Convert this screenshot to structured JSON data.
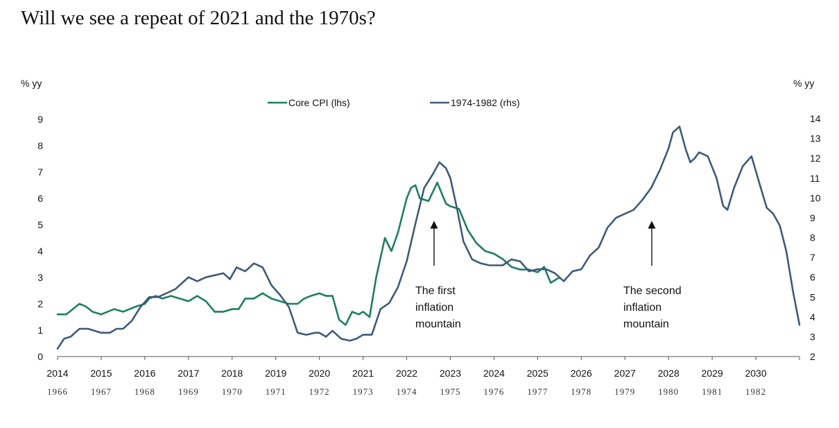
{
  "header": {
    "title": "Will we see a repeat of 2021 and the 1970s?"
  },
  "chart_data": {
    "type": "line",
    "title": "Will we see a repeat of 2021 and the 1970s?",
    "left_axis": {
      "label": "% yy",
      "ylim": [
        0,
        9
      ],
      "ticks": [
        "0",
        "1",
        "2",
        "3",
        "4",
        "5",
        "6",
        "7",
        "8",
        "9"
      ]
    },
    "right_axis": {
      "label": "% yy",
      "ylim": [
        2,
        14
      ],
      "ticks": [
        "2",
        "3",
        "4",
        "5",
        "6",
        "7",
        "8",
        "9",
        "10",
        "11",
        "12",
        "13",
        "14"
      ]
    },
    "x_axis": {
      "range": [
        2014,
        2031
      ],
      "primary_ticks": [
        "2014",
        "2015",
        "2016",
        "2017",
        "2018",
        "2019",
        "2020",
        "2021",
        "2022",
        "2023",
        "2024",
        "2025",
        "2026",
        "2027",
        "2028",
        "2029",
        "2030"
      ],
      "secondary_ticks": [
        "1966",
        "1967",
        "1968",
        "1969",
        "1970",
        "1971",
        "1972",
        "1973",
        "1974",
        "1975",
        "1976",
        "1977",
        "1978",
        "1979",
        "1980",
        "1981",
        "1982"
      ]
    },
    "legend": {
      "placement": "top-center"
    },
    "grid": false,
    "series": [
      {
        "name": "Core CPI (lhs)",
        "axis": "left",
        "color": "#1b7f5f",
        "x": [
          2014.0,
          2014.2,
          2014.35,
          2014.5,
          2014.65,
          2014.8,
          2015.0,
          2015.3,
          2015.5,
          2015.8,
          2016.0,
          2016.1,
          2016.25,
          2016.4,
          2016.6,
          2016.8,
          2017.0,
          2017.2,
          2017.4,
          2017.6,
          2017.8,
          2018.0,
          2018.15,
          2018.3,
          2018.5,
          2018.7,
          2018.9,
          2019.1,
          2019.3,
          2019.5,
          2019.65,
          2019.8,
          2020.0,
          2020.15,
          2020.3,
          2020.45,
          2020.6,
          2020.75,
          2020.9,
          2021.0,
          2021.15,
          2021.3,
          2021.5,
          2021.65,
          2021.8,
          2022.0,
          2022.1,
          2022.2,
          2022.3,
          2022.5,
          2022.7,
          2022.9,
          2023.0,
          2023.2,
          2023.4,
          2023.6,
          2023.8,
          2024.0,
          2024.2,
          2024.4,
          2024.6,
          2024.8,
          2025.0,
          2025.15,
          2025.3,
          2025.5
        ],
        "values": [
          1.6,
          1.6,
          1.8,
          2.0,
          1.9,
          1.7,
          1.6,
          1.8,
          1.7,
          1.9,
          2.0,
          2.2,
          2.3,
          2.2,
          2.3,
          2.2,
          2.1,
          2.3,
          2.1,
          1.7,
          1.7,
          1.8,
          1.8,
          2.2,
          2.2,
          2.4,
          2.2,
          2.1,
          2.0,
          2.0,
          2.2,
          2.3,
          2.4,
          2.3,
          2.3,
          1.4,
          1.2,
          1.7,
          1.6,
          1.7,
          1.5,
          3.0,
          4.5,
          4.0,
          4.7,
          6.0,
          6.4,
          6.5,
          6.0,
          5.9,
          6.6,
          5.8,
          5.7,
          5.6,
          4.8,
          4.3,
          4.0,
          3.9,
          3.7,
          3.4,
          3.3,
          3.3,
          3.2,
          3.4,
          2.8,
          3.0
        ]
      },
      {
        "name": "1974-1982 (rhs)",
        "axis": "right",
        "color": "#3d5a7a",
        "x": [
          2014.0,
          2014.15,
          2014.3,
          2014.5,
          2014.7,
          2015.0,
          2015.2,
          2015.35,
          2015.5,
          2015.7,
          2015.9,
          2016.1,
          2016.3,
          2016.5,
          2016.7,
          2016.9,
          2017.0,
          2017.2,
          2017.4,
          2017.6,
          2017.8,
          2017.95,
          2018.1,
          2018.3,
          2018.5,
          2018.7,
          2018.9,
          2019.1,
          2019.3,
          2019.5,
          2019.7,
          2019.9,
          2020.0,
          2020.15,
          2020.3,
          2020.5,
          2020.7,
          2020.85,
          2021.0,
          2021.2,
          2021.4,
          2021.6,
          2021.8,
          2022.0,
          2022.2,
          2022.4,
          2022.6,
          2022.75,
          2022.9,
          2023.0,
          2023.15,
          2023.3,
          2023.5,
          2023.7,
          2023.9,
          2024.0,
          2024.2,
          2024.4,
          2024.6,
          2024.8,
          2025.0,
          2025.2,
          2025.4,
          2025.6,
          2025.8,
          2026.0,
          2026.2,
          2026.4,
          2026.6,
          2026.8,
          2027.0,
          2027.2,
          2027.4,
          2027.6,
          2027.8,
          2028.0,
          2028.1,
          2028.25,
          2028.4,
          2028.5,
          2028.6,
          2028.7,
          2028.9,
          2029.1,
          2029.25,
          2029.35,
          2029.5,
          2029.7,
          2029.9,
          2030.1,
          2030.25,
          2030.4,
          2030.55,
          2030.7,
          2030.85,
          2031.0
        ],
        "values": [
          2.4,
          2.9,
          3.0,
          3.4,
          3.4,
          3.2,
          3.2,
          3.4,
          3.4,
          3.8,
          4.5,
          5.0,
          5.0,
          5.2,
          5.4,
          5.8,
          6.0,
          5.8,
          6.0,
          6.1,
          6.2,
          5.9,
          6.5,
          6.3,
          6.7,
          6.5,
          5.6,
          5.1,
          4.5,
          3.2,
          3.1,
          3.2,
          3.2,
          3.0,
          3.3,
          2.9,
          2.8,
          2.9,
          3.1,
          3.1,
          4.4,
          4.7,
          5.5,
          6.8,
          8.7,
          10.5,
          11.2,
          11.8,
          11.5,
          11.0,
          9.5,
          7.8,
          6.9,
          6.7,
          6.6,
          6.6,
          6.6,
          6.9,
          6.8,
          6.3,
          6.4,
          6.4,
          6.2,
          5.8,
          6.3,
          6.4,
          7.1,
          7.5,
          8.5,
          9.0,
          9.2,
          9.4,
          9.9,
          10.5,
          11.4,
          12.5,
          13.3,
          13.6,
          12.4,
          11.8,
          12.0,
          12.3,
          12.1,
          11.0,
          9.6,
          9.4,
          10.5,
          11.6,
          12.1,
          10.6,
          9.5,
          9.2,
          8.6,
          7.3,
          5.3,
          3.6
        ]
      }
    ],
    "annotations": [
      {
        "lines": [
          "The first",
          "inflation",
          "mountain"
        ]
      },
      {
        "lines": [
          "The second",
          "inflation",
          "mountain"
        ]
      }
    ]
  }
}
